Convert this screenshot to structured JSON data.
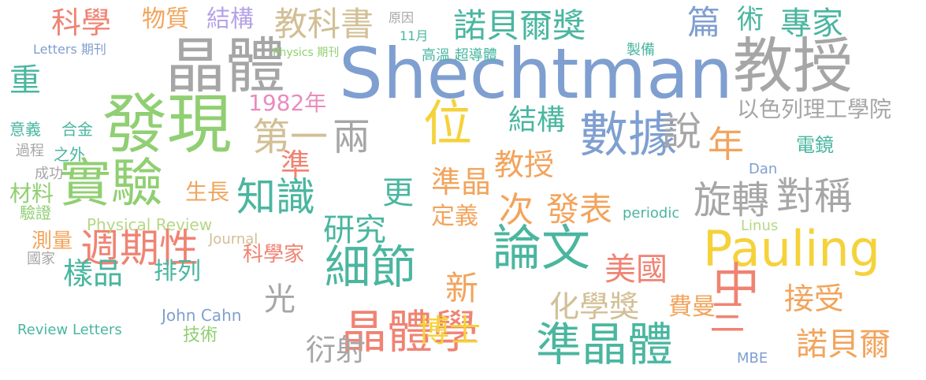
{
  "palette": {
    "blue": "#7f9fd0",
    "teal": "#4ab6a0",
    "green": "#90cf72",
    "yellow": "#f5d23a",
    "orange": "#f2a45c",
    "salmon": "#f08373",
    "pink": "#e98bbf",
    "purple": "#b6a3e6",
    "gray": "#a6a6a6",
    "tan": "#d2bf95",
    "lightgreen": "#b6d786"
  },
  "words": [
    "Shechtman",
    "教授",
    "晶體",
    "發現",
    "實驗",
    "數據",
    "說",
    "論文",
    "Pauling",
    "位",
    "準晶體",
    "晶體學",
    "中",
    "週期性",
    "細節",
    "知識",
    "諾貝爾獎",
    "第一",
    "兩",
    "年",
    "旋轉",
    "對稱",
    "科學",
    "物質",
    "結構",
    "教科書",
    "篇",
    "術",
    "專家",
    "重",
    "意義",
    "合金",
    "過程",
    "成功",
    "材料",
    "驗證",
    "樣品",
    "排列",
    "技術",
    "測量",
    "國家",
    "光",
    "衍射",
    "博士",
    "化學獎",
    "美國",
    "費曼",
    "接受",
    "諾貝爾",
    "三",
    "新",
    "研究",
    "更",
    "準晶",
    "定義",
    "次",
    "發表",
    "教授",
    "結構",
    "以色列理工學院",
    "電鏡",
    "1982年",
    "生長",
    "之外",
    "準",
    "科學家",
    "Physical Review",
    "John Cahn",
    "Journal",
    "periodic",
    "Linus",
    "MBE",
    "Dan",
    "Review Letters",
    "Letters 期刊",
    "Physics 期刊",
    "高溫 超導體",
    "11月",
    "原因",
    "製備"
  ]
}
